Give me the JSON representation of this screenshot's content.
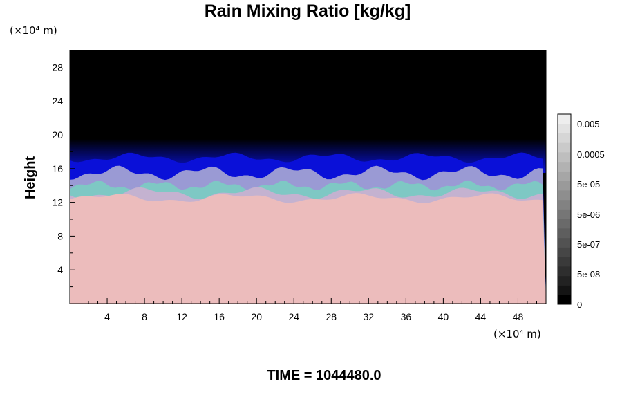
{
  "chart_data": {
    "type": "heatmap",
    "title": "Rain Mixing Ratio [kg/kg]",
    "ylabel": "Height",
    "x_unit": "(×10⁴ m)",
    "y_unit": "(×10⁴ m)",
    "x_ticks": [
      "4",
      "8",
      "12",
      "16",
      "20",
      "24",
      "28",
      "32",
      "36",
      "40",
      "44",
      "48"
    ],
    "y_ticks": [
      "4",
      "8",
      "12",
      "16",
      "20",
      "24",
      "28"
    ],
    "xlim": [
      0,
      51
    ],
    "ylim": [
      0,
      30
    ],
    "colorbar": {
      "tick_labels": [
        "0.005",
        "0.0005",
        "5e-05",
        "5e-06",
        "5e-07",
        "5e-08",
        "0"
      ],
      "colors": [
        "#000000",
        "#141414",
        "#222222",
        "#2e2e2e",
        "#3a3a3a",
        "#464646",
        "#525252",
        "#5e5e5e",
        "#6a6a6a",
        "#767676",
        "#828282",
        "#8e8e8e",
        "#9a9a9a",
        "#a6a6a6",
        "#b2b2b2",
        "#bebebe",
        "#cacaca",
        "#d6d6d6",
        "#e2e2e2",
        "#eeeeee"
      ]
    },
    "field_layers": [
      {
        "name": "upper",
        "top": 30,
        "bottom": 19.5,
        "color": "#000000"
      },
      {
        "name": "deep-blue",
        "top": 19.5,
        "bottom": 15.5,
        "color": "#0a10d8"
      },
      {
        "name": "lavender",
        "top": 15.5,
        "bottom": 12.5,
        "color": "#9a9ad4"
      },
      {
        "name": "teal",
        "top": 14,
        "bottom": 12.5,
        "color": "#7ec8c4"
      },
      {
        "name": "lower",
        "top": 12.5,
        "bottom": 0,
        "color": "#ecbcbc"
      }
    ]
  },
  "footer": {
    "time_label": "TIME = 1044480.0"
  }
}
